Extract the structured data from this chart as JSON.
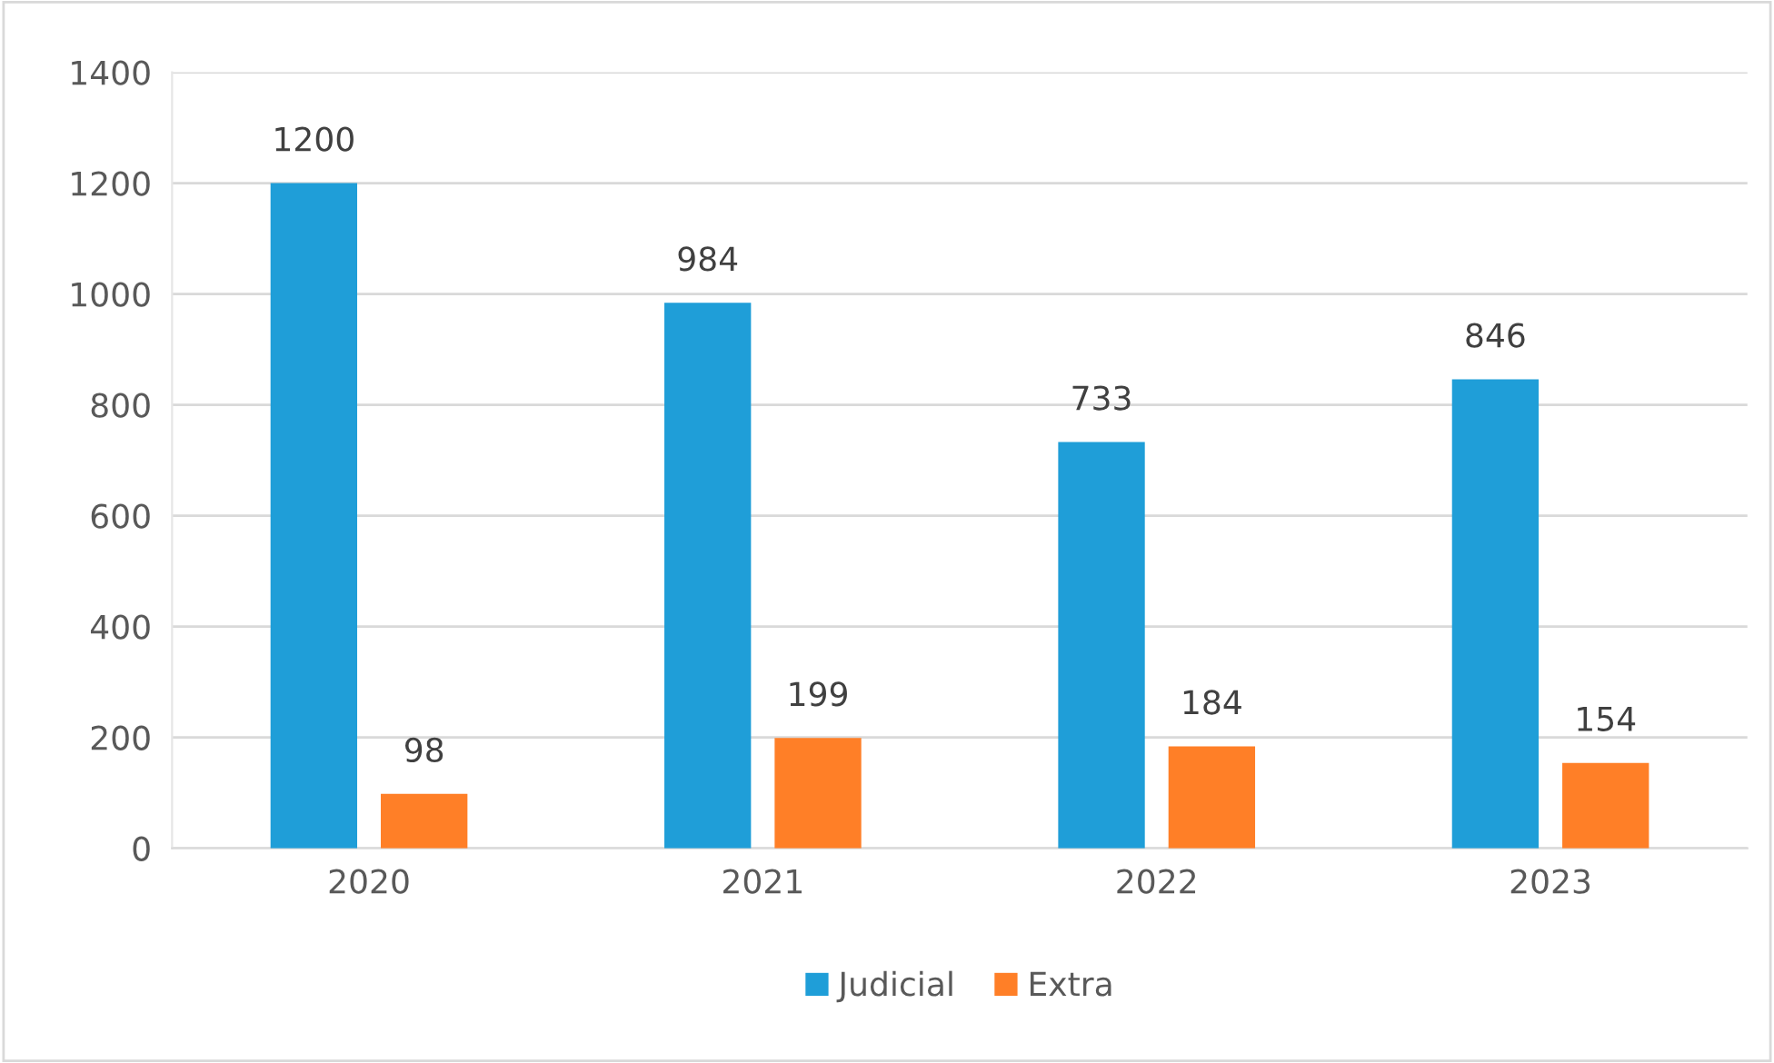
{
  "chart_data": {
    "type": "bar",
    "categories": [
      "2020",
      "2021",
      "2022",
      "2023"
    ],
    "series": [
      {
        "name": "Judicial",
        "color": "#1f9ed8",
        "values": [
          1200,
          984,
          733,
          846
        ]
      },
      {
        "name": "Extra",
        "color": "#ff7f27",
        "values": [
          98,
          199,
          184,
          154
        ]
      }
    ],
    "ylim": [
      0,
      1400
    ],
    "yticks": [
      0,
      200,
      400,
      600,
      800,
      1000,
      1200,
      1400
    ],
    "grid": "y",
    "legend": "bottom",
    "data_labels": true
  }
}
